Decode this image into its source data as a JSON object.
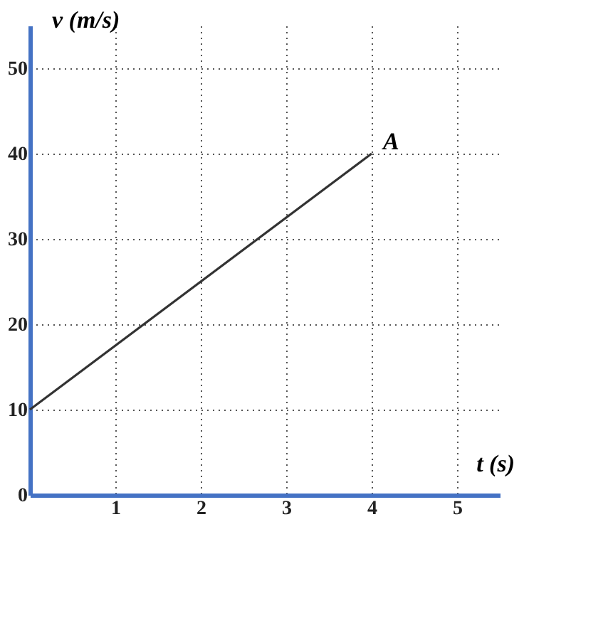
{
  "chart_data": {
    "type": "line",
    "x": [
      0,
      4
    ],
    "series": [
      {
        "color": "#333333",
        "values": [
          10,
          40
        ]
      }
    ],
    "xlabel": "t (s)",
    "ylabel": "v (m/s)",
    "annotations": [
      {
        "text": "A",
        "x": 4,
        "y": 40
      }
    ],
    "xlim": [
      0,
      5.5
    ],
    "ylim": [
      0,
      55
    ],
    "xticks": [
      1,
      2,
      3,
      4,
      5
    ],
    "yticks": [
      0,
      10,
      20,
      30,
      40,
      50
    ],
    "grid": true,
    "marker": "none",
    "line_style": "solid"
  }
}
